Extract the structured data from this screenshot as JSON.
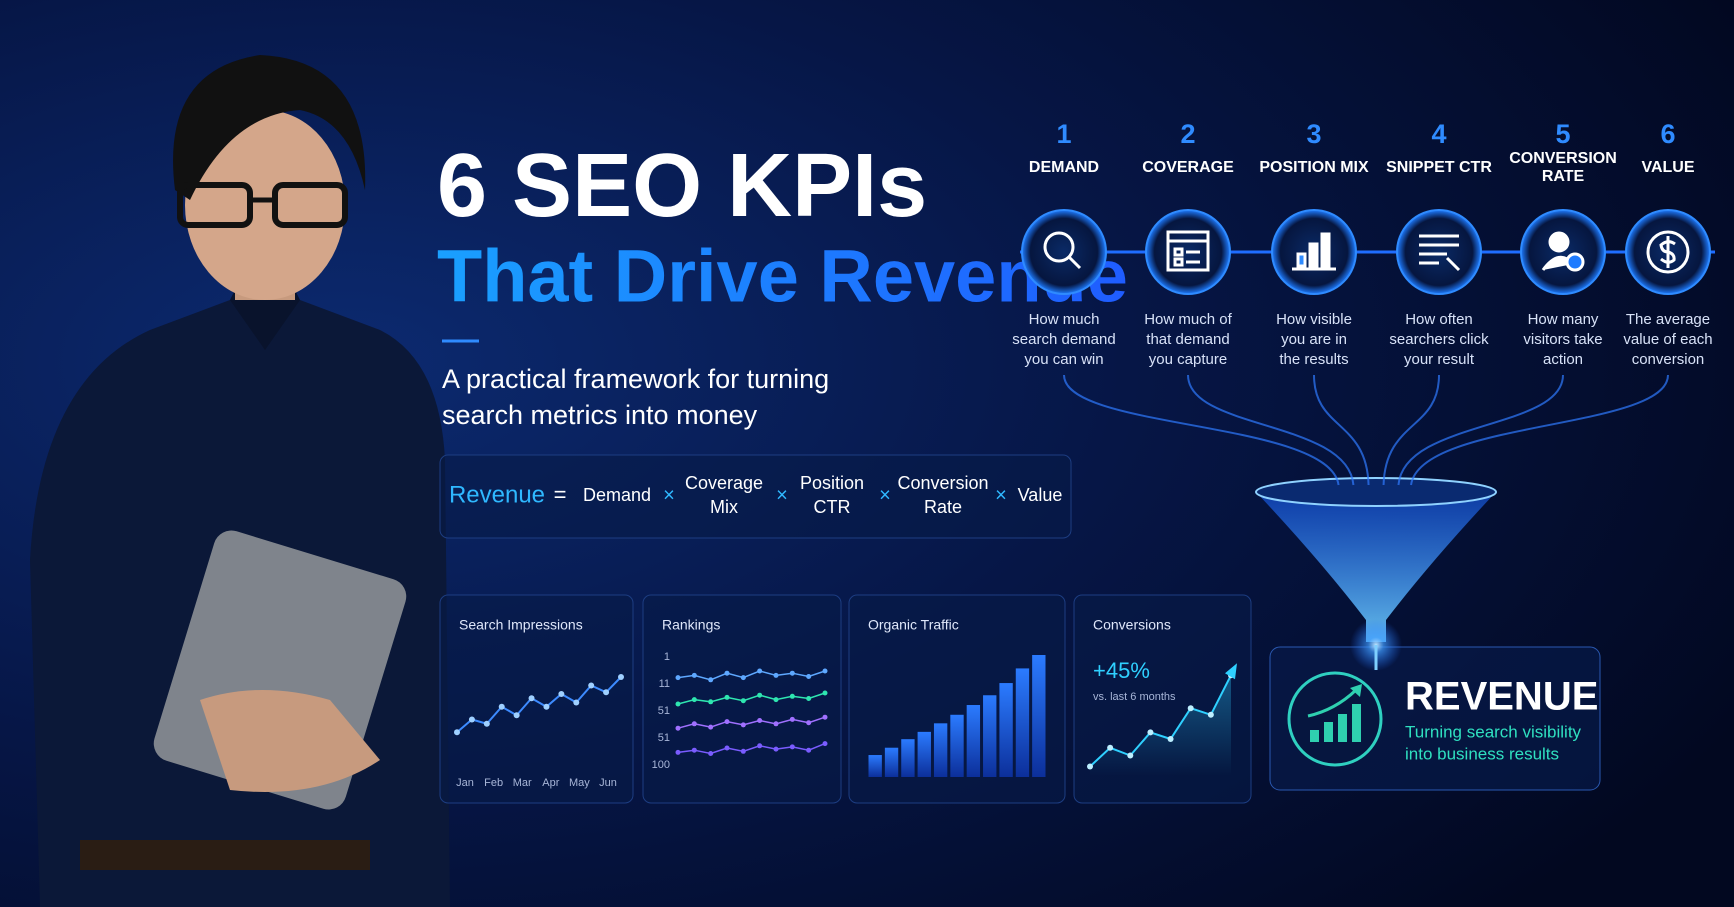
{
  "header": {
    "title_line1": "6 SEO KPIs",
    "title_line2": "That Drive Revenue",
    "subtitle": [
      "A practical framework for turning",
      "search metrics into money"
    ]
  },
  "formula": {
    "lhs": "Revenue",
    "equals": "=",
    "operator": "×",
    "terms": [
      [
        "Demand"
      ],
      [
        "Coverage",
        "Mix"
      ],
      [
        "Position",
        "CTR"
      ],
      [
        "Conversion",
        "Rate"
      ],
      [
        "Value"
      ]
    ]
  },
  "kpis": [
    {
      "number": 1,
      "label": [
        "DEMAND"
      ],
      "description": [
        "How much",
        "search demand",
        "you can win"
      ]
    },
    {
      "number": 2,
      "label": [
        "COVERAGE"
      ],
      "description": [
        "How much of",
        "that demand",
        "you capture"
      ]
    },
    {
      "number": 3,
      "label": [
        "POSITION MIX"
      ],
      "description": [
        "How visible",
        "you are in",
        "the results"
      ]
    },
    {
      "number": 4,
      "label": [
        "SNIPPET CTR"
      ],
      "description": [
        "How often",
        "searchers click",
        "your result"
      ]
    },
    {
      "number": 5,
      "label": [
        "CONVERSION",
        "RATE"
      ],
      "description": [
        "How many",
        "visitors take",
        "action"
      ]
    },
    {
      "number": 6,
      "label": [
        "VALUE"
      ],
      "description": [
        "The average",
        "value of each",
        "conversion"
      ]
    }
  ],
  "revenue": {
    "title": "REVENUE",
    "lines": [
      "Turning search visibility",
      "into business results"
    ]
  },
  "charts": [
    {
      "type": "line",
      "title": "Search Impressions",
      "categories": [
        "Jan",
        "Feb",
        "Mar",
        "Apr",
        "May",
        "Jun"
      ],
      "ylim": [
        0,
        100
      ],
      "color": "#3d8bff",
      "values": [
        15,
        30,
        25,
        45,
        35,
        55,
        45,
        60,
        50,
        70,
        62,
        80
      ]
    },
    {
      "type": "multiline",
      "title": "Rankings",
      "ytick_labels": [
        "1",
        "11",
        "51",
        "51",
        "100"
      ],
      "ylim": [
        0,
        100
      ],
      "series": [
        {
          "color": "#5ea8ff",
          "values": [
            84,
            86,
            82,
            88,
            84,
            90,
            86,
            88,
            85,
            90
          ]
        },
        {
          "color": "#2ee6b0",
          "values": [
            60,
            64,
            62,
            66,
            63,
            68,
            64,
            67,
            65,
            70
          ]
        },
        {
          "color": "#a070ff",
          "values": [
            38,
            42,
            39,
            44,
            41,
            45,
            42,
            46,
            43,
            48
          ]
        },
        {
          "color": "#7a5cff",
          "values": [
            16,
            18,
            15,
            20,
            17,
            22,
            19,
            21,
            18,
            24
          ]
        }
      ]
    },
    {
      "type": "bar",
      "title": "Organic Traffic",
      "ylim": [
        0,
        100
      ],
      "color": "#1f6dff",
      "values": [
        18,
        24,
        31,
        37,
        44,
        51,
        59,
        67,
        77,
        89,
        100
      ]
    },
    {
      "type": "area",
      "title": "Conversions",
      "stat": "+45%",
      "stat_note": "vs. last 6 months",
      "ylim": [
        0,
        100
      ],
      "color": "#2fd0ff",
      "values": [
        5,
        22,
        15,
        36,
        30,
        58,
        52,
        88
      ]
    }
  ]
}
